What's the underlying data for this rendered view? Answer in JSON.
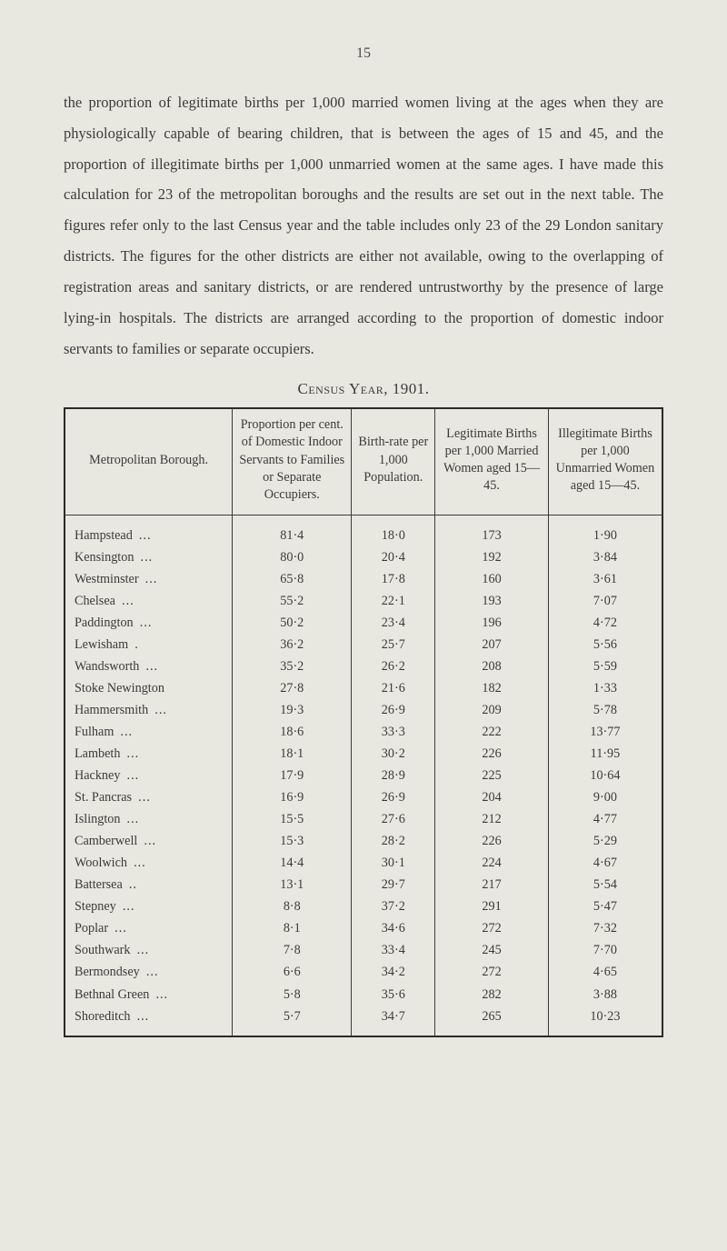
{
  "page_number": "15",
  "body_text": "the proportion of legitimate births per 1,000 married women living at the ages when they are physiologically capable of bearing children, that is between the ages of 15 and 45, and the proportion of illegitimate births per 1,000 unmarried women at the same ages. I have made this calculation for 23 of the metropolitan boroughs and the results are set out in the next table. The figures refer only to the last Census year and the table includes only 23 of the 29 London sanitary districts. The figures for the other districts are either not available, owing to the overlapping of registration areas and sanitary districts, or are rendered untrustworthy by the presence of large lying-in hospitals. The districts are arranged according to the proportion of domestic indoor servants to families or separate occupiers.",
  "table_title": "Census Year, 1901.",
  "table": {
    "columns": [
      "Metropolitan Borough.",
      "Proportion per cent. of Domestic Indoor Servants to Families or Separate Occupiers.",
      "Birth-rate per 1,000 Population.",
      "Legitimate Births per 1,000 Married Women aged 15—45.",
      "Illegitimate Births per 1,000 Unmarried Women aged 15—45."
    ],
    "col_widths": [
      "28%",
      "20%",
      "14%",
      "19%",
      "19%"
    ],
    "rows": [
      [
        "Hampstead",
        "81·4",
        "18·0",
        "173",
        "1·90"
      ],
      [
        "Kensington",
        "80·0",
        "20·4",
        "192",
        "3·84"
      ],
      [
        "Westminster",
        "65·8",
        "17·8",
        "160",
        "3·61"
      ],
      [
        "Chelsea",
        "55·2",
        "22·1",
        "193",
        "7·07"
      ],
      [
        "Paddington",
        "50·2",
        "23·4",
        "196",
        "4·72"
      ],
      [
        "Lewisham",
        "36·2",
        "25·7",
        "207",
        "5·56"
      ],
      [
        "Wandsworth",
        "35·2",
        "26·2",
        "208",
        "5·59"
      ],
      [
        "Stoke Newington",
        "27·8",
        "21·6",
        "182",
        "1·33"
      ],
      [
        "Hammersmith",
        "19·3",
        "26·9",
        "209",
        "5·78"
      ],
      [
        "Fulham",
        "18·6",
        "33·3",
        "222",
        "13·77"
      ],
      [
        "Lambeth",
        "18·1",
        "30·2",
        "226",
        "11·95"
      ],
      [
        "Hackney",
        "17·9",
        "28·9",
        "225",
        "10·64"
      ],
      [
        "St. Pancras",
        "16·9",
        "26·9",
        "204",
        "9·00"
      ],
      [
        "Islington",
        "15·5",
        "27·6",
        "212",
        "4·77"
      ],
      [
        "Camberwell",
        "15·3",
        "28·2",
        "226",
        "5·29"
      ],
      [
        "Woolwich",
        "14·4",
        "30·1",
        "224",
        "4·67"
      ],
      [
        "Battersea",
        "13·1",
        "29·7",
        "217",
        "5·54"
      ],
      [
        "Stepney",
        "8·8",
        "37·2",
        "291",
        "5·47"
      ],
      [
        "Poplar",
        "8·1",
        "34·6",
        "272",
        "7·32"
      ],
      [
        "Southwark",
        "7·8",
        "33·4",
        "245",
        "7·70"
      ],
      [
        "Bermondsey",
        "6·6",
        "34·2",
        "272",
        "4·65"
      ],
      [
        "Bethnal Green",
        "5·8",
        "35·6",
        "282",
        "3·88"
      ],
      [
        "Shoreditch",
        "5·7",
        "34·7",
        "265",
        "10·23"
      ]
    ],
    "suffix_dots": {
      "Hampstead": "...",
      "Kensington": "...",
      "Westminster": "...",
      "Chelsea": "...",
      "Paddington": "...",
      "Lewisham": ".",
      "Wandsworth": "...",
      "Stoke Newington": "",
      "Hammersmith": "...",
      "Fulham": "...",
      "Lambeth": "...",
      "Hackney": "...",
      "St. Pancras": "...",
      "Islington": "...",
      "Camberwell": "...",
      "Woolwich": "...",
      "Battersea": "..",
      "Stepney": "...",
      "Poplar": "...",
      "Southwark": "...",
      "Bermondsey": "...",
      "Bethnal Green": "...",
      "Shoreditch": "..."
    }
  },
  "styling": {
    "background_color": "#e8e8e0",
    "text_color": "#3a3a3a",
    "border_color": "#2a2a2a",
    "body_font_size_pt": 12,
    "table_font_size_pt": 11,
    "body_line_height": 2.05
  }
}
